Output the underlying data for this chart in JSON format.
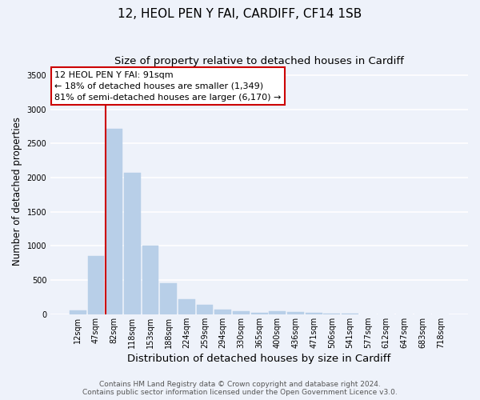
{
  "title_line1": "12, HEOL PEN Y FAI, CARDIFF, CF14 1SB",
  "title_line2": "Size of property relative to detached houses in Cardiff",
  "xlabel": "Distribution of detached houses by size in Cardiff",
  "ylabel": "Number of detached properties",
  "categories": [
    "12sqm",
    "47sqm",
    "82sqm",
    "118sqm",
    "153sqm",
    "188sqm",
    "224sqm",
    "259sqm",
    "294sqm",
    "330sqm",
    "365sqm",
    "400sqm",
    "436sqm",
    "471sqm",
    "506sqm",
    "541sqm",
    "577sqm",
    "612sqm",
    "647sqm",
    "683sqm",
    "718sqm"
  ],
  "values": [
    55,
    850,
    2720,
    2070,
    1010,
    455,
    215,
    140,
    65,
    40,
    20,
    40,
    30,
    15,
    5,
    5,
    3,
    2,
    0,
    0,
    0
  ],
  "bar_color": "#b8cfe8",
  "bar_edgecolor": "#b8cfe8",
  "vline_x": 2,
  "vline_color": "#cc0000",
  "ylim": [
    0,
    3600
  ],
  "yticks": [
    0,
    500,
    1000,
    1500,
    2000,
    2500,
    3000,
    3500
  ],
  "annotation_box_text": "12 HEOL PEN Y FAI: 91sqm\n← 18% of detached houses are smaller (1,349)\n81% of semi-detached houses are larger (6,170) →",
  "footer_line1": "Contains HM Land Registry data © Crown copyright and database right 2024.",
  "footer_line2": "Contains public sector information licensed under the Open Government Licence v3.0.",
  "bg_color": "#eef2fa",
  "grid_color": "#ffffff",
  "title_fontsize": 11,
  "subtitle_fontsize": 9.5,
  "tick_fontsize": 7,
  "ylabel_fontsize": 8.5,
  "xlabel_fontsize": 9.5,
  "annot_fontsize": 8,
  "footer_fontsize": 6.5
}
